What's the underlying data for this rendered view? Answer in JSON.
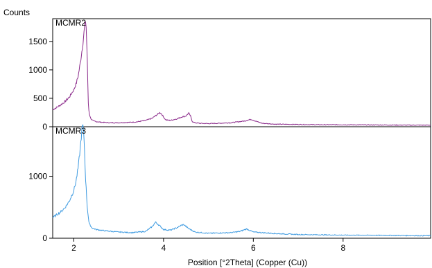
{
  "chart_data": {
    "type": "line",
    "ylabel": "Counts",
    "xlabel": "Position [°2Theta] (Copper (Cu))",
    "xlim": [
      1.53,
      9.95
    ],
    "xticks": [
      2,
      4,
      6,
      8
    ],
    "grid": false,
    "legend": "none",
    "panels": [
      {
        "name": "MCMR2",
        "color": "#8b2a8b",
        "ylim": [
          0,
          1900
        ],
        "yticks": [
          0,
          500,
          1000,
          1500
        ],
        "x": [
          1.53,
          1.6,
          1.7,
          1.8,
          1.9,
          2.0,
          2.05,
          2.1,
          2.15,
          2.2,
          2.24,
          2.27,
          2.3,
          2.32,
          2.34,
          2.37,
          2.4,
          2.45,
          2.5,
          2.6,
          2.8,
          3.0,
          3.2,
          3.4,
          3.6,
          3.75,
          3.85,
          3.92,
          3.96,
          4.0,
          4.05,
          4.15,
          4.3,
          4.4,
          4.5,
          4.56,
          4.6,
          4.64,
          4.7,
          4.8,
          5.0,
          5.2,
          5.5,
          5.8,
          5.95,
          6.0,
          6.08,
          6.2,
          6.5,
          7.0,
          7.5,
          8.0,
          8.5,
          9.0,
          9.5,
          9.95
        ],
        "y": [
          300,
          330,
          380,
          440,
          520,
          650,
          750,
          900,
          1150,
          1450,
          1750,
          1880,
          1200,
          450,
          250,
          160,
          120,
          100,
          90,
          80,
          70,
          70,
          75,
          85,
          110,
          150,
          210,
          250,
          220,
          170,
          120,
          110,
          140,
          170,
          190,
          240,
          190,
          90,
          70,
          60,
          55,
          60,
          70,
          100,
          130,
          115,
          90,
          60,
          45,
          40,
          35,
          35,
          32,
          30,
          28,
          28
        ]
      },
      {
        "name": "MCMR3",
        "color": "#3d9ae0",
        "ylim": [
          0,
          1800
        ],
        "yticks": [
          0,
          1000
        ],
        "x": [
          1.53,
          1.6,
          1.7,
          1.8,
          1.9,
          2.0,
          2.05,
          2.1,
          2.15,
          2.18,
          2.2,
          2.23,
          2.26,
          2.3,
          2.34,
          2.4,
          2.5,
          2.7,
          3.0,
          3.3,
          3.6,
          3.75,
          3.82,
          3.9,
          4.0,
          4.15,
          4.3,
          4.4,
          4.45,
          4.55,
          4.7,
          5.0,
          5.5,
          5.7,
          5.85,
          6.0,
          6.5,
          7.0,
          7.5,
          8.0,
          8.5,
          9.0,
          9.5,
          9.95
        ],
        "y": [
          330,
          370,
          420,
          490,
          600,
          770,
          920,
          1150,
          1500,
          1750,
          1830,
          1600,
          1000,
          500,
          240,
          170,
          140,
          120,
          100,
          90,
          110,
          190,
          260,
          210,
          140,
          130,
          170,
          210,
          220,
          160,
          100,
          80,
          90,
          110,
          150,
          100,
          75,
          60,
          55,
          50,
          48,
          45,
          42,
          40
        ]
      }
    ]
  }
}
